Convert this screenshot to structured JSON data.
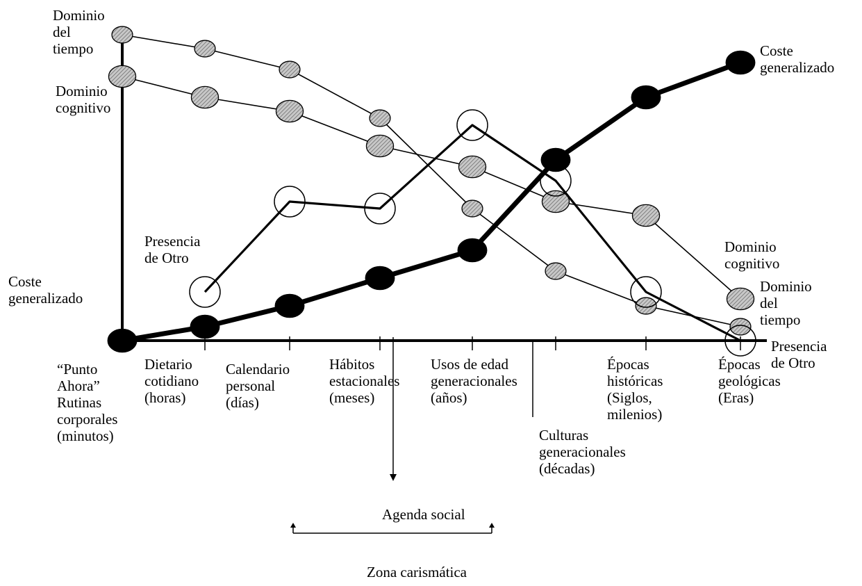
{
  "chart_data": {
    "type": "line",
    "categories": [
      "“Punto Ahora” Rutinas corporales (minutos)",
      "Dietario cotidiano (horas)",
      "Calendario personal (días)",
      "Hábitos estacionales (meses)",
      "Usos de edad generacionales (años)",
      "Culturas generacionales (décadas)",
      "Épocas históricas (Siglos, milenios)",
      "Épocas geológicas (Eras)"
    ],
    "x_label_lines": [
      [
        "“Punto",
        "Ahora”",
        "Rutinas",
        "corporales",
        "(minutos)"
      ],
      [
        "Dietario",
        "cotidiano",
        "(horas)"
      ],
      [
        "Calendario",
        "personal",
        "(días)"
      ],
      [
        "Hábitos",
        "estacionales",
        "(meses)"
      ],
      [
        "Usos de edad",
        "generacionales",
        "(años)"
      ],
      [
        "Culturas",
        "generacionales",
        "(décadas)"
      ],
      [
        "Épocas",
        "históricas",
        "(Siglos,",
        "milenios)"
      ],
      [
        "Épocas",
        "geológicas",
        "(Eras)"
      ]
    ],
    "series": [
      {
        "name": "Dominio del tiempo",
        "start_label_lines": [
          "Dominio",
          "del",
          "tiempo"
        ],
        "end_label_lines": [
          "Dominio",
          "del",
          "tiempo"
        ],
        "marker": "hatched-small",
        "x": [
          0,
          1,
          2,
          3,
          4,
          5,
          6,
          7
        ],
        "values": [
          44,
          42,
          39,
          32,
          19,
          10,
          5,
          2
        ]
      },
      {
        "name": "Dominio cognitivo",
        "start_label_lines": [
          "Dominio",
          "cognitivo"
        ],
        "end_label_lines": [
          "Dominio",
          "cognitivo"
        ],
        "marker": "hatched-large",
        "x": [
          0,
          1,
          2,
          3,
          4,
          5,
          6,
          7
        ],
        "values": [
          38,
          35,
          33,
          28,
          25,
          20,
          18,
          6
        ]
      },
      {
        "name": "Presencia de Otro",
        "start_label_lines": [
          "Presencia",
          "de Otro"
        ],
        "end_label_lines": [
          "Presencia",
          "de Otro"
        ],
        "marker": "hollow",
        "x": [
          1,
          2,
          3,
          4,
          5,
          6,
          7
        ],
        "values": [
          7,
          20,
          19,
          31,
          23,
          7,
          0
        ]
      },
      {
        "name": "Coste generalizado",
        "start_label_lines": [
          "Coste",
          "generalizado"
        ],
        "end_label_lines": [
          "Coste",
          "generalizado"
        ],
        "marker": "solid",
        "x": [
          0,
          1,
          2,
          3,
          4,
          5,
          6,
          7
        ],
        "values": [
          0,
          2,
          5,
          9,
          13,
          26,
          35,
          40
        ]
      }
    ],
    "annotations": {
      "agenda": "Agenda social",
      "zona": "Zona carismática"
    },
    "ylim": [
      0,
      44
    ]
  }
}
